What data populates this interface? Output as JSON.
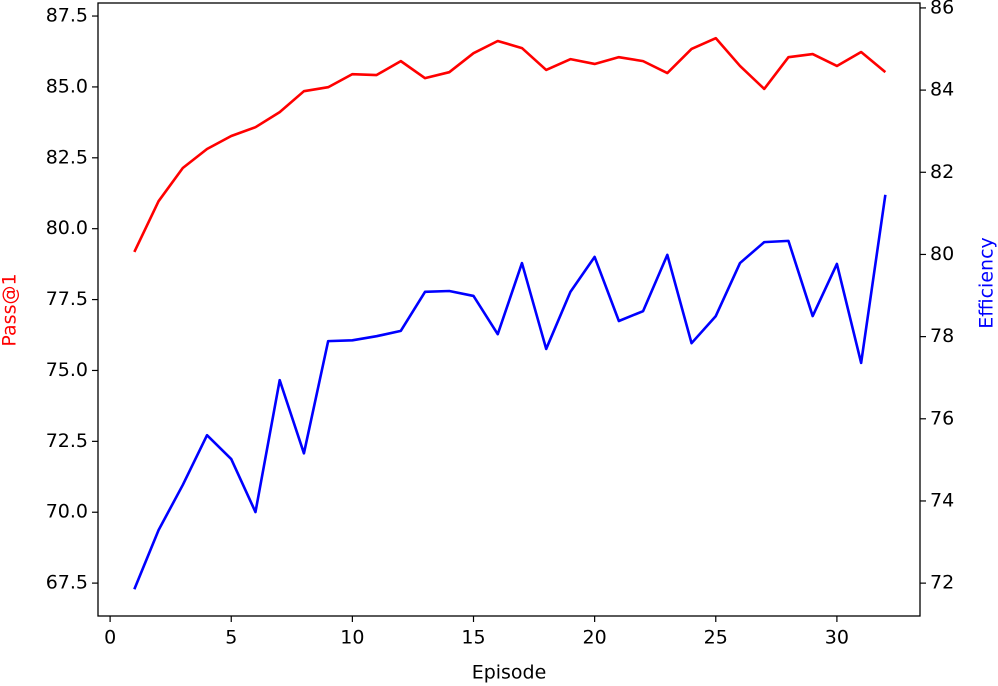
{
  "chart_data": {
    "type": "line",
    "xlabel": "Episode",
    "ylabel": "Pass@1",
    "y2label": "Efficiency",
    "x": [
      1,
      2,
      3,
      4,
      5,
      6,
      7,
      8,
      9,
      10,
      11,
      12,
      13,
      14,
      15,
      16,
      17,
      18,
      19,
      20,
      21,
      22,
      23,
      24,
      25,
      26,
      27,
      28,
      29,
      30,
      31,
      32
    ],
    "series": [
      {
        "name": "Pass@1",
        "color": "#ff0000",
        "axis": "y",
        "values": [
          79.18,
          80.97,
          82.14,
          82.81,
          83.27,
          83.58,
          84.11,
          84.85,
          84.99,
          85.45,
          85.42,
          85.91,
          85.31,
          85.52,
          86.19,
          86.62,
          86.37,
          85.6,
          85.98,
          85.81,
          86.05,
          85.91,
          85.49,
          86.34,
          86.72,
          85.74,
          84.93,
          86.05,
          86.16,
          85.74,
          86.23,
          85.52
        ]
      },
      {
        "name": "Efficiency",
        "color": "#0000ff",
        "axis": "y2",
        "values": [
          71.85,
          73.29,
          74.39,
          75.6,
          75.02,
          73.73,
          76.94,
          75.16,
          77.89,
          77.91,
          78.01,
          78.14,
          79.09,
          79.11,
          78.99,
          78.06,
          79.79,
          77.7,
          79.09,
          79.94,
          78.38,
          78.62,
          79.99,
          77.84,
          78.5,
          79.79,
          80.3,
          80.33,
          78.5,
          79.77,
          77.36,
          81.45
        ]
      }
    ],
    "xlim": [
      -0.5,
      33.43
    ],
    "xticks": [
      0,
      5,
      10,
      15,
      20,
      25,
      30
    ],
    "ylim": [
      66.34,
      87.96
    ],
    "yticks": [
      67.5,
      {
        "value": 70,
        "label": "70.0"
      },
      72.5,
      {
        "value": 75,
        "label": "75.0"
      },
      77.5,
      {
        "value": 80,
        "label": "80.0"
      },
      82.5,
      {
        "value": 85,
        "label": "85.0"
      },
      87.5
    ],
    "y2lim": [
      71.2,
      86.12
    ],
    "y2ticks": [
      72,
      74,
      76,
      78,
      80,
      82,
      84,
      86
    ]
  }
}
